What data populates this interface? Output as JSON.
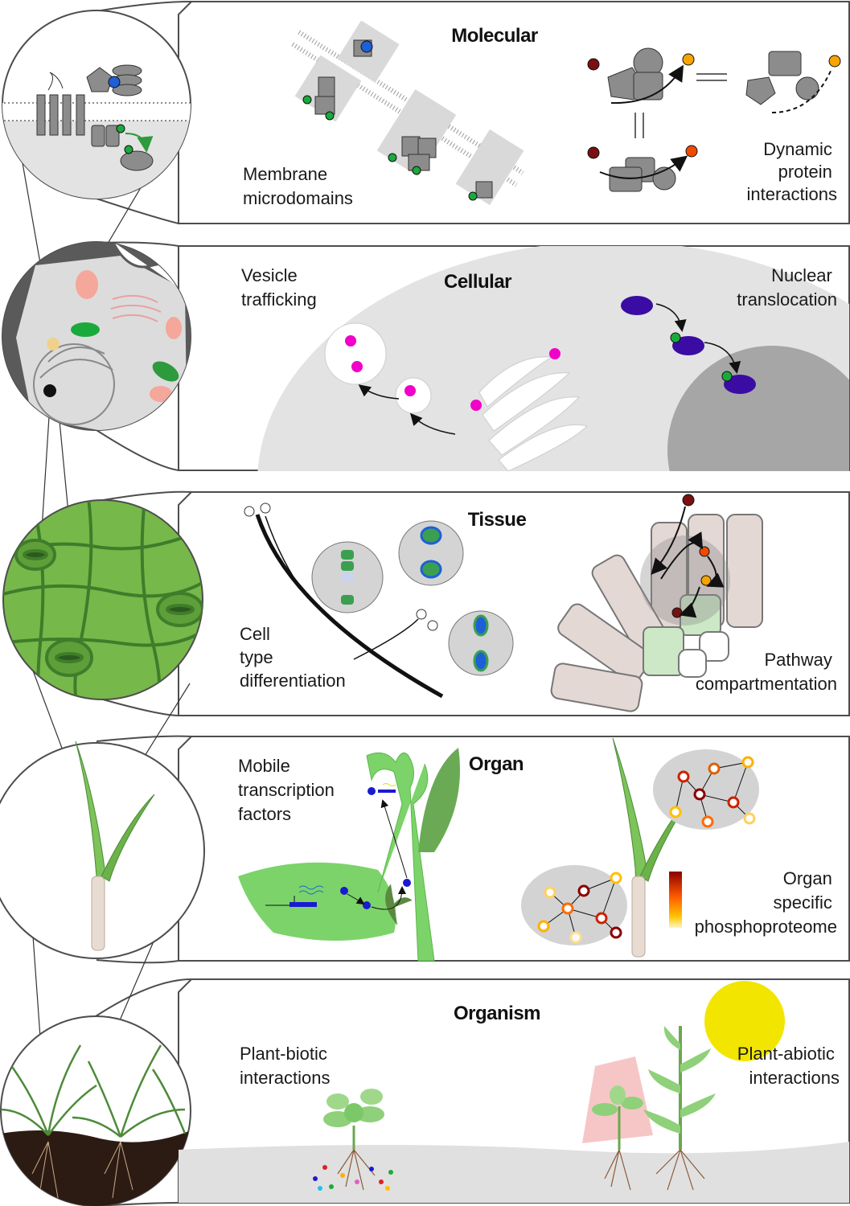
{
  "colors": {
    "panel_border": "#4d4d4d",
    "cell_grey": "#e3e3e3",
    "nucleus_grey": "#a6a6a6",
    "protein_grey": "#8c8c8c",
    "leaf_green": "#6cc24a",
    "tissue_green": "#76b84a",
    "phospho_green": "#2e9a3e",
    "pink": "#f000c8",
    "purple": "#3a0ca3",
    "sun_yellow": "#f2e600",
    "soil_brown": "#2b1b12"
  },
  "panels": [
    {
      "heading": "Molecular",
      "labels": [
        [
          "Membrane",
          "microdomains"
        ],
        [
          "Dynamic",
          "protein",
          "interactions"
        ]
      ]
    },
    {
      "heading": "Cellular",
      "labels": [
        [
          "Vesicle",
          "trafficking"
        ],
        [
          "Nuclear",
          "translocation"
        ]
      ]
    },
    {
      "heading": "Tissue",
      "labels": [
        [
          "Cell",
          "type",
          "differentiation"
        ],
        [
          "Pathway",
          "compartmentation"
        ]
      ]
    },
    {
      "heading": "Organ",
      "labels": [
        [
          "Mobile",
          "transcription",
          "factors"
        ],
        [
          "Organ",
          "specific",
          "phosphoproteome"
        ]
      ]
    },
    {
      "heading": "Organism",
      "labels": [
        [
          "Plant-biotic",
          "interactions"
        ],
        [
          "Plant-abiotic",
          "interactions"
        ]
      ]
    }
  ]
}
